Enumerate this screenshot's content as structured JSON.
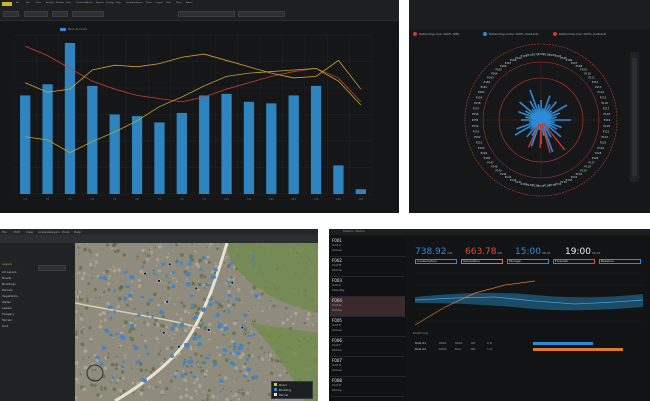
{
  "panel1": {
    "menu": [
      "File",
      "Edit",
      "View",
      "Analysis",
      "Window",
      "Tools",
      "Dashboards",
      "Charts",
      "Reports",
      "Settings",
      "Help",
      "Templates",
      "Export",
      "Share",
      "Layout",
      "Data",
      "Filters",
      "Admin"
    ],
    "legend": "Bars & Lines",
    "chart_data": {
      "type": "bar",
      "categories": [
        "C1",
        "C2",
        "C3",
        "C4",
        "C5",
        "C6",
        "C7",
        "C8",
        "C9",
        "C10",
        "C11",
        "C12",
        "C13",
        "C14",
        "C15",
        "C16"
      ],
      "values": [
        62,
        69,
        95,
        68,
        50,
        49,
        45,
        51,
        62,
        63,
        58,
        57,
        62,
        68,
        18,
        3
      ],
      "ylim": [
        0,
        100
      ],
      "series": [
        {
          "values": [
            93,
            87,
            79,
            71,
            66,
            62,
            60,
            58,
            61,
            66,
            70,
            74,
            77,
            79,
            73,
            58
          ],
          "color": "#d03b2a"
        },
        {
          "values": [
            70,
            64,
            66,
            78,
            81,
            80,
            82,
            86,
            88,
            84,
            80,
            76,
            73,
            74,
            84,
            66
          ],
          "color": "#d6a224"
        },
        {
          "values": [
            36,
            34,
            26,
            33,
            39,
            46,
            55,
            61,
            68,
            74,
            76,
            77,
            78,
            79,
            71,
            56
          ],
          "color": "#b7a72b"
        }
      ]
    }
  },
  "panel2": {
    "legend": [
      {
        "label": "Defending over 100% (PM)",
        "color": "#d03b2a"
      },
      {
        "label": "Defending under 100% (Indirect)",
        "color": "#2f8bd7"
      },
      {
        "label": "Defending over 100% (Indirect)",
        "color": "#d03b2a"
      }
    ],
    "ring_labels": [
      "P101",
      "P102",
      "P103",
      "P104",
      "P105",
      "P106",
      "P107",
      "P108",
      "P109",
      "P110",
      "P111",
      "P112",
      "P113",
      "P114",
      "P115",
      "P116",
      "P117",
      "P118",
      "P119",
      "P120",
      "P121",
      "P122",
      "P123",
      "P124",
      "P125",
      "P126",
      "P127",
      "P128",
      "P129",
      "P130",
      "P131",
      "P132",
      "P133",
      "P134",
      "P135",
      "P136",
      "P137",
      "P138",
      "P139",
      "P140",
      "P141",
      "P142",
      "P143",
      "P144",
      "P145",
      "P146",
      "P147",
      "P148",
      "P149",
      "P150",
      "P151",
      "P152",
      "P153",
      "P154",
      "P155",
      "P156",
      "P157",
      "P158",
      "P159",
      "P160",
      "P161",
      "P162",
      "P163",
      "P164",
      "P165",
      "P166",
      "P167",
      "P168",
      "P169",
      "P170",
      "P171",
      "P172"
    ],
    "colors": {
      "accent": "#d03b2a",
      "blue": "#2f8bd7"
    }
  },
  "panel3": {
    "menu": [
      "File",
      "Edit",
      "View",
      "Analysis",
      "Layers",
      "Tools",
      "Help"
    ],
    "layers_title": "Layers",
    "layers": [
      "All Layers",
      "Roads",
      "Buildings",
      "Parcels",
      "Vegetation",
      "Water",
      "Labels",
      "Imagery",
      "Terrain",
      "Grid"
    ],
    "toolbar": [
      "Select",
      "Add",
      "Query"
    ],
    "legend": [
      {
        "label": "Road",
        "color": "#d8c64a"
      },
      {
        "label": "Building",
        "color": "#2f8bd7"
      },
      {
        "label": "Parcel",
        "color": "#e3e3e3"
      }
    ],
    "status": "Ready"
  },
  "panel4": {
    "title": "Mission Status",
    "kpis": [
      {
        "value": "738.92",
        "unit": "kW",
        "color": "#2f8bd7"
      },
      {
        "value": "663.78",
        "unit": "kW",
        "color": "#e04b3a"
      },
      {
        "value": "15:00",
        "unit": "06-01",
        "color": "#2f8bd7"
      },
      {
        "value": "19:00",
        "unit": "06-01",
        "color": "#e8eef3"
      }
    ],
    "tags": [
      {
        "label": "Consumption",
        "color": "#2f8bd7"
      },
      {
        "label": "Generation",
        "color": "#e07a2a"
      },
      {
        "label": "Storage",
        "color": "#2f8bd7"
      },
      {
        "label": "Forecast",
        "color": "#e04b3a"
      },
      {
        "label": "Baseline",
        "color": "#2f8bd7"
      }
    ],
    "units": [
      {
        "name": "F001",
        "line1": "Unit A",
        "line2": "Online"
      },
      {
        "name": "F002",
        "line1": "Unit B",
        "line2": "Online"
      },
      {
        "name": "F003",
        "line1": "Unit C",
        "line2": "Standby"
      },
      {
        "name": "F004",
        "line1": "Unit D",
        "line2": "Online"
      },
      {
        "name": "F005",
        "line1": "Unit E",
        "line2": "Online"
      },
      {
        "name": "F006",
        "line1": "Unit F",
        "line2": "Online"
      },
      {
        "name": "F007",
        "line1": "Unit G",
        "line2": "Online"
      },
      {
        "name": "F008",
        "line1": "Unit H",
        "line2": "Online"
      }
    ],
    "table_title": "Event Log",
    "rows": [
      {
        "name": "Row 01",
        "cells": [
          "0001",
          "Start",
          "OK",
          "0.0"
        ],
        "status": "#2f8bd7"
      },
      {
        "name": "Row 02",
        "cells": [
          "0002",
          "Run",
          "OK",
          "1.4"
        ],
        "status": "#e07a2a"
      }
    ]
  }
}
